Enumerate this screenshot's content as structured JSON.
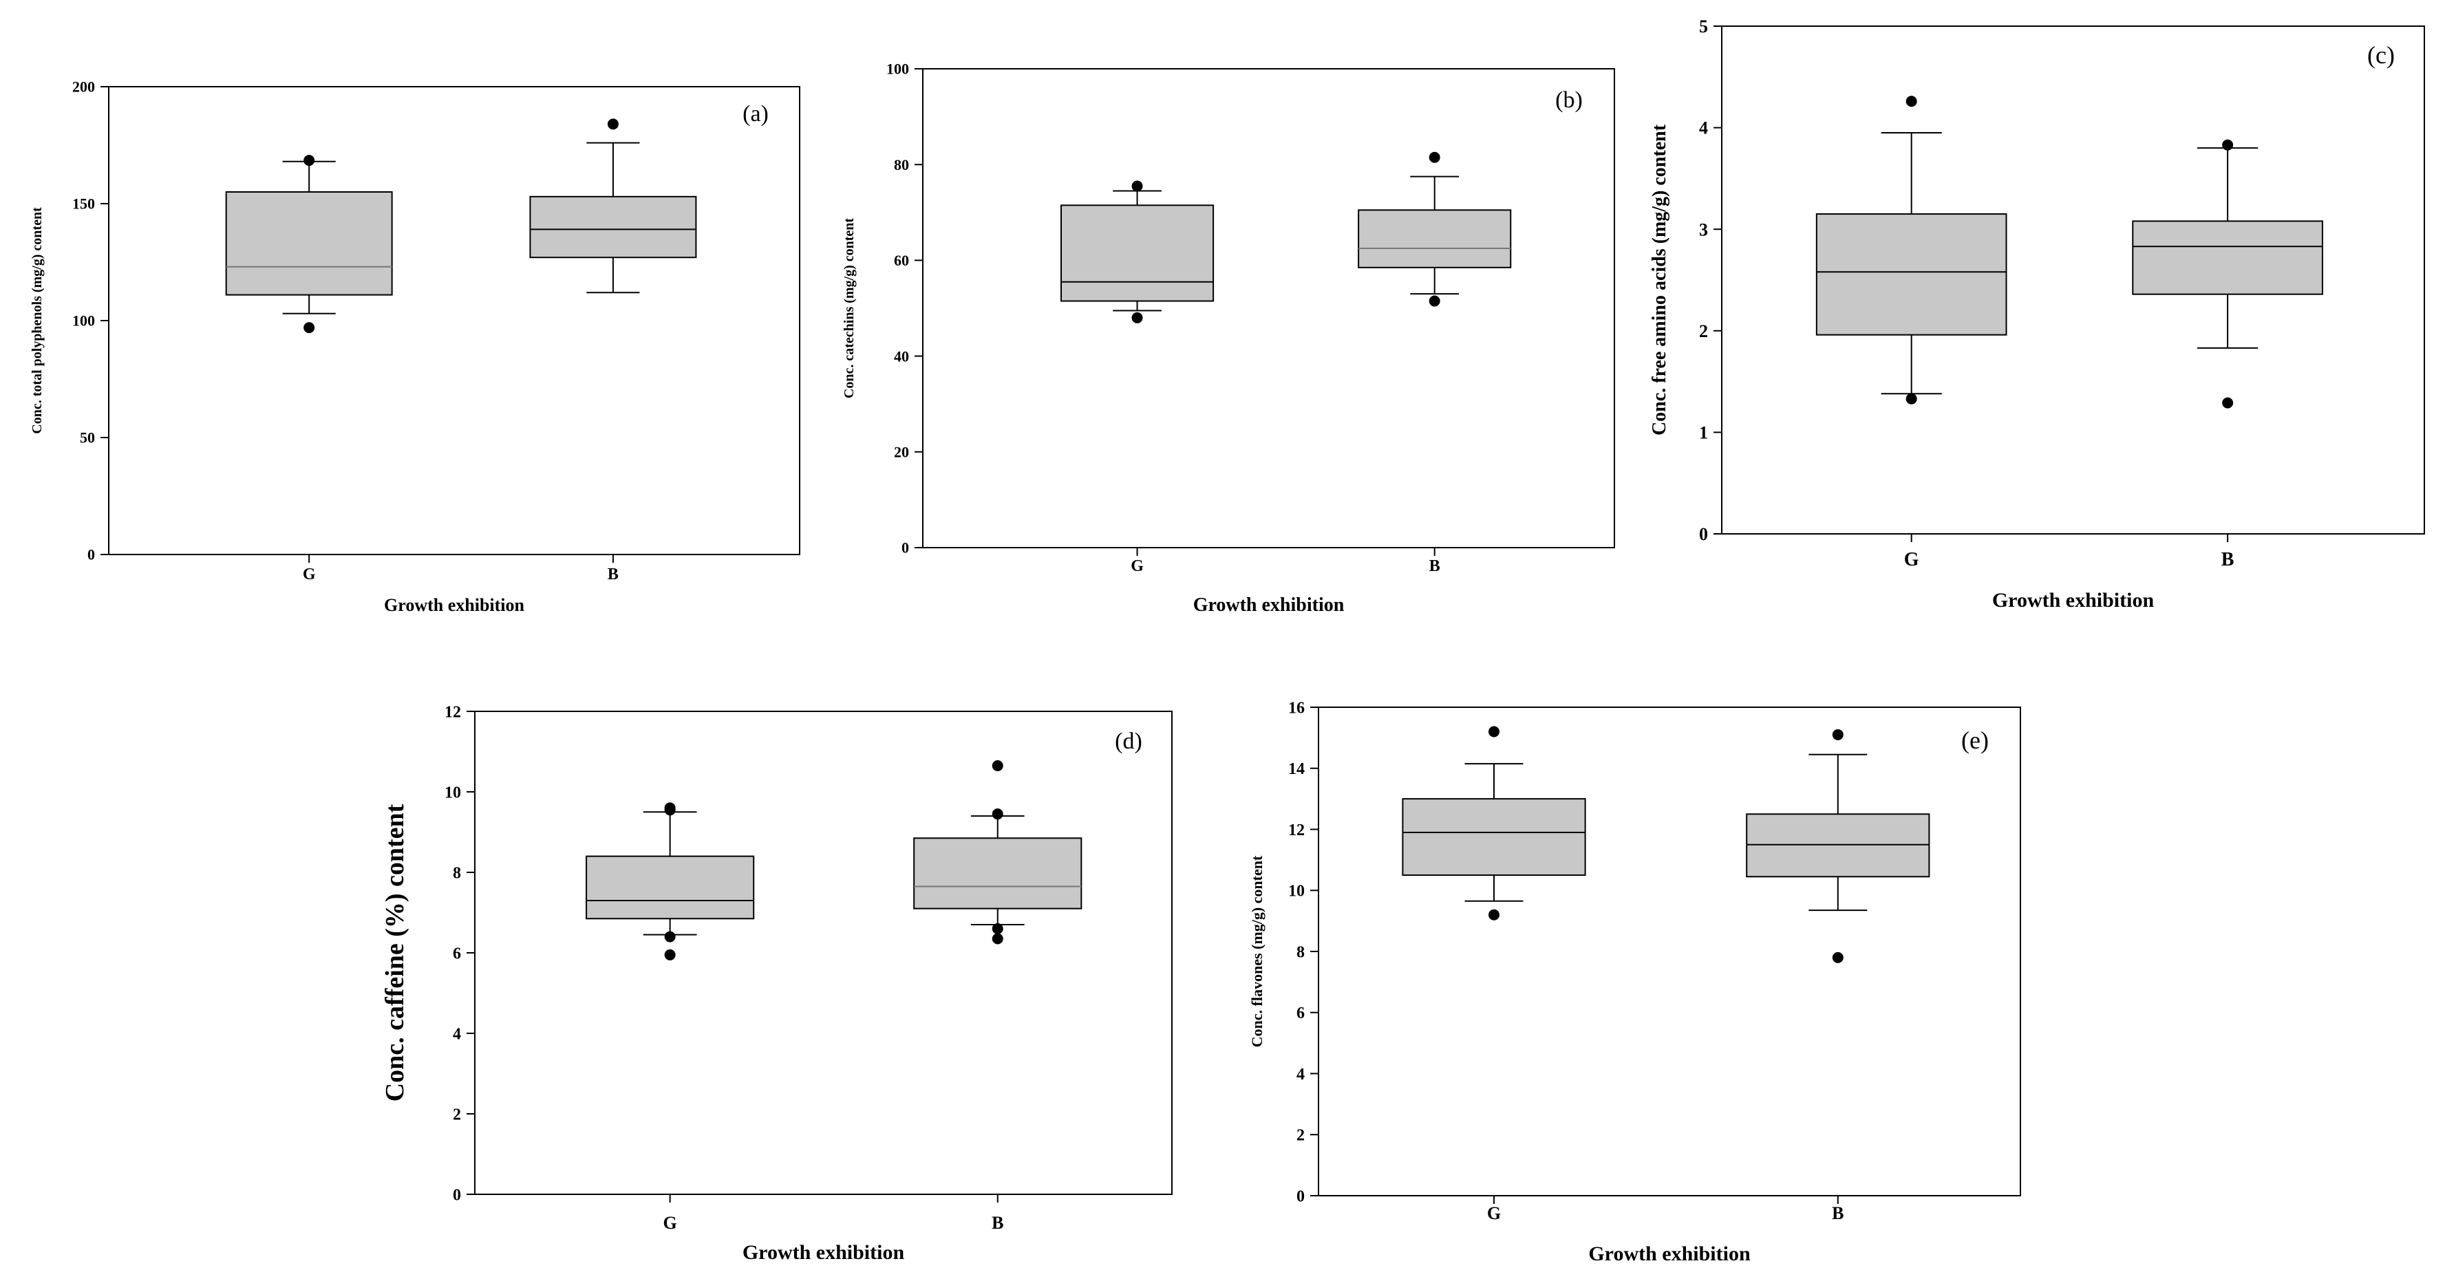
{
  "colors": {
    "box_fill": "#c8c8c8",
    "stroke": "#000000",
    "median_light": "#777777",
    "background": "#ffffff"
  },
  "chart_data": [
    {
      "type": "box",
      "panel": "(a)",
      "categories": [
        "G",
        "B"
      ],
      "xlabel": "Growth exhibition",
      "ylabel": "Conc. total polyphenols (mg/g) content",
      "ylim": [
        0,
        200
      ],
      "yticks": [
        0,
        50,
        100,
        150,
        200
      ],
      "boxes": [
        {
          "category": "G",
          "q1": 111,
          "median": 123,
          "q3": 155,
          "whisker_low": 103,
          "whisker_high": 168,
          "outliers": [
            97,
            168.5
          ]
        },
        {
          "category": "B",
          "q1": 127,
          "median": 139,
          "q3": 153,
          "whisker_low": 112,
          "whisker_high": 176,
          "outliers": [
            184
          ]
        }
      ]
    },
    {
      "type": "box",
      "panel": "(b)",
      "categories": [
        "G",
        "B"
      ],
      "xlabel": "Growth exhibition",
      "ylabel": "Conc. catechins (mg/g) content",
      "ylim": [
        0,
        100
      ],
      "yticks": [
        0,
        20,
        40,
        60,
        80,
        100
      ],
      "boxes": [
        {
          "category": "G",
          "q1": 51.5,
          "median": 55.5,
          "q3": 71.5,
          "whisker_low": 49.5,
          "whisker_high": 74.5,
          "outliers": [
            48,
            75.5
          ]
        },
        {
          "category": "B",
          "q1": 58.5,
          "median": 62.5,
          "q3": 70.5,
          "whisker_low": 53,
          "whisker_high": 77.5,
          "outliers": [
            51.5,
            81.5
          ]
        }
      ]
    },
    {
      "type": "box",
      "panel": "(c)",
      "categories": [
        "G",
        "B"
      ],
      "xlabel": "Growth exhibition",
      "ylabel": "Conc. free amino acids (mg/g) content",
      "ylim": [
        0,
        5
      ],
      "yticks": [
        0,
        1,
        2,
        3,
        4,
        5
      ],
      "boxes": [
        {
          "category": "G",
          "q1": 1.96,
          "median": 2.58,
          "q3": 3.15,
          "whisker_low": 1.38,
          "whisker_high": 3.95,
          "outliers": [
            1.33,
            4.26
          ]
        },
        {
          "category": "B",
          "q1": 2.36,
          "median": 2.83,
          "q3": 3.08,
          "whisker_low": 1.83,
          "whisker_high": 3.8,
          "outliers": [
            1.29,
            3.83
          ]
        }
      ]
    },
    {
      "type": "box",
      "panel": "(d)",
      "categories": [
        "G",
        "B"
      ],
      "xlabel": "Growth exhibition",
      "ylabel": "Conc.  caffeine (%) content",
      "ylim": [
        0,
        12
      ],
      "yticks": [
        0,
        2,
        4,
        6,
        8,
        10,
        12
      ],
      "boxes": [
        {
          "category": "G",
          "q1": 6.85,
          "median": 7.3,
          "q3": 8.4,
          "whisker_low": 6.45,
          "whisker_high": 9.5,
          "outliers": [
            5.95,
            6.4,
            9.55,
            9.6
          ]
        },
        {
          "category": "B",
          "q1": 7.1,
          "median": 7.65,
          "q3": 8.85,
          "whisker_low": 6.7,
          "whisker_high": 9.4,
          "outliers": [
            6.35,
            6.6,
            9.45,
            10.65
          ]
        }
      ]
    },
    {
      "type": "box",
      "panel": "(e)",
      "categories": [
        "G",
        "B"
      ],
      "xlabel": "Growth exhibition",
      "ylabel": "Conc. flavones (mg/g) content",
      "ylim": [
        0,
        16
      ],
      "yticks": [
        0,
        2,
        4,
        6,
        8,
        10,
        12,
        14,
        16
      ],
      "boxes": [
        {
          "category": "G",
          "q1": 10.5,
          "median": 11.9,
          "q3": 13,
          "whisker_low": 9.65,
          "whisker_high": 14.15,
          "outliers": [
            9.2,
            15.2
          ]
        },
        {
          "category": "B",
          "q1": 10.45,
          "median": 11.5,
          "q3": 12.5,
          "whisker_low": 9.35,
          "whisker_high": 14.45,
          "outliers": [
            7.8,
            15.1
          ]
        }
      ]
    }
  ]
}
